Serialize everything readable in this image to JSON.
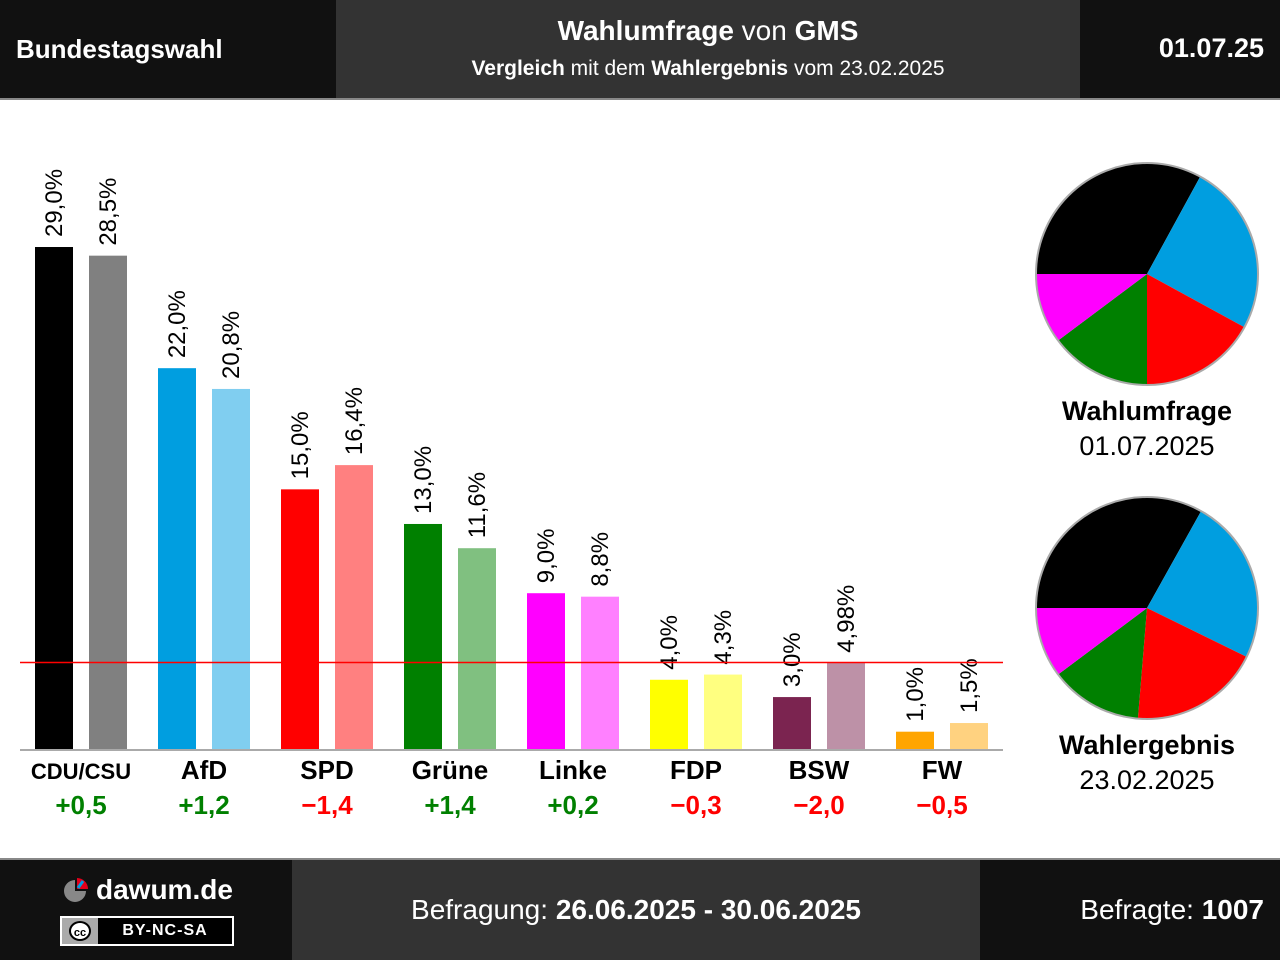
{
  "header": {
    "left_title": "Bundestagswahl",
    "title_bold": "Wahlumfrage",
    "title_connector": " von ",
    "institute": "GMS",
    "subtitle_bold1": "Vergleich",
    "subtitle_text1": " mit dem ",
    "subtitle_bold2": "Wahlergebnis",
    "subtitle_text2": " vom 23.02.2025",
    "date": "01.07.25"
  },
  "footer": {
    "logo_text": "dawum.de",
    "license": "BY-NC-SA",
    "license_icon": "cc",
    "survey_label": "Befragung: ",
    "survey_period": "26.06.2025 - 30.06.2025",
    "respondents_label": "Befragte: ",
    "respondents": "1007"
  },
  "pies": [
    {
      "title": "Wahlumfrage",
      "date": "01.07.2025"
    },
    {
      "title": "Wahlergebnis",
      "date": "23.02.2025"
    }
  ],
  "chart_data": {
    "type": "bar",
    "categories": [
      "CDU/CSU",
      "AfD",
      "SPD",
      "Grüne",
      "Linke",
      "FDP",
      "BSW",
      "FW"
    ],
    "series": [
      {
        "values": [
          29.0,
          22.0,
          15.0,
          13.0,
          9.0,
          4.0,
          3.0,
          1.0
        ],
        "labels": [
          "29,0%",
          "22,0%",
          "15,0%",
          "13,0%",
          "9,0%",
          "4,0%",
          "3,0%",
          "1,0%"
        ],
        "colors": [
          "#000000",
          "#009ee0",
          "#ff0000",
          "#008000",
          "#ff00ff",
          "#ffff00",
          "#7b2450",
          "#ffa500"
        ]
      },
      {
        "values": [
          28.5,
          20.8,
          16.4,
          11.6,
          8.8,
          4.3,
          4.98,
          1.5
        ],
        "labels": [
          "28,5%",
          "20,8%",
          "16,4%",
          "11,6%",
          "8,8%",
          "4,3%",
          "4,98%",
          "1,5%"
        ],
        "colors": [
          "#808080",
          "#80cef0",
          "#ff8080",
          "#80c080",
          "#ff80ff",
          "#ffff80",
          "#bd91a7",
          "#ffd280"
        ]
      }
    ],
    "changes": [
      "+0,5",
      "+1,2",
      "−1,4",
      "+1,4",
      "+0,2",
      "−0,3",
      "−2,0",
      "−0,5"
    ],
    "change_colors": {
      "positive": "#008000",
      "negative": "#ff0000"
    },
    "threshold": 5,
    "threshold_color": "#ff0000",
    "ylim": [
      0,
      29
    ],
    "pie_parties": [
      "CDU/CSU",
      "AfD",
      "SPD",
      "Grüne",
      "Linke"
    ]
  }
}
